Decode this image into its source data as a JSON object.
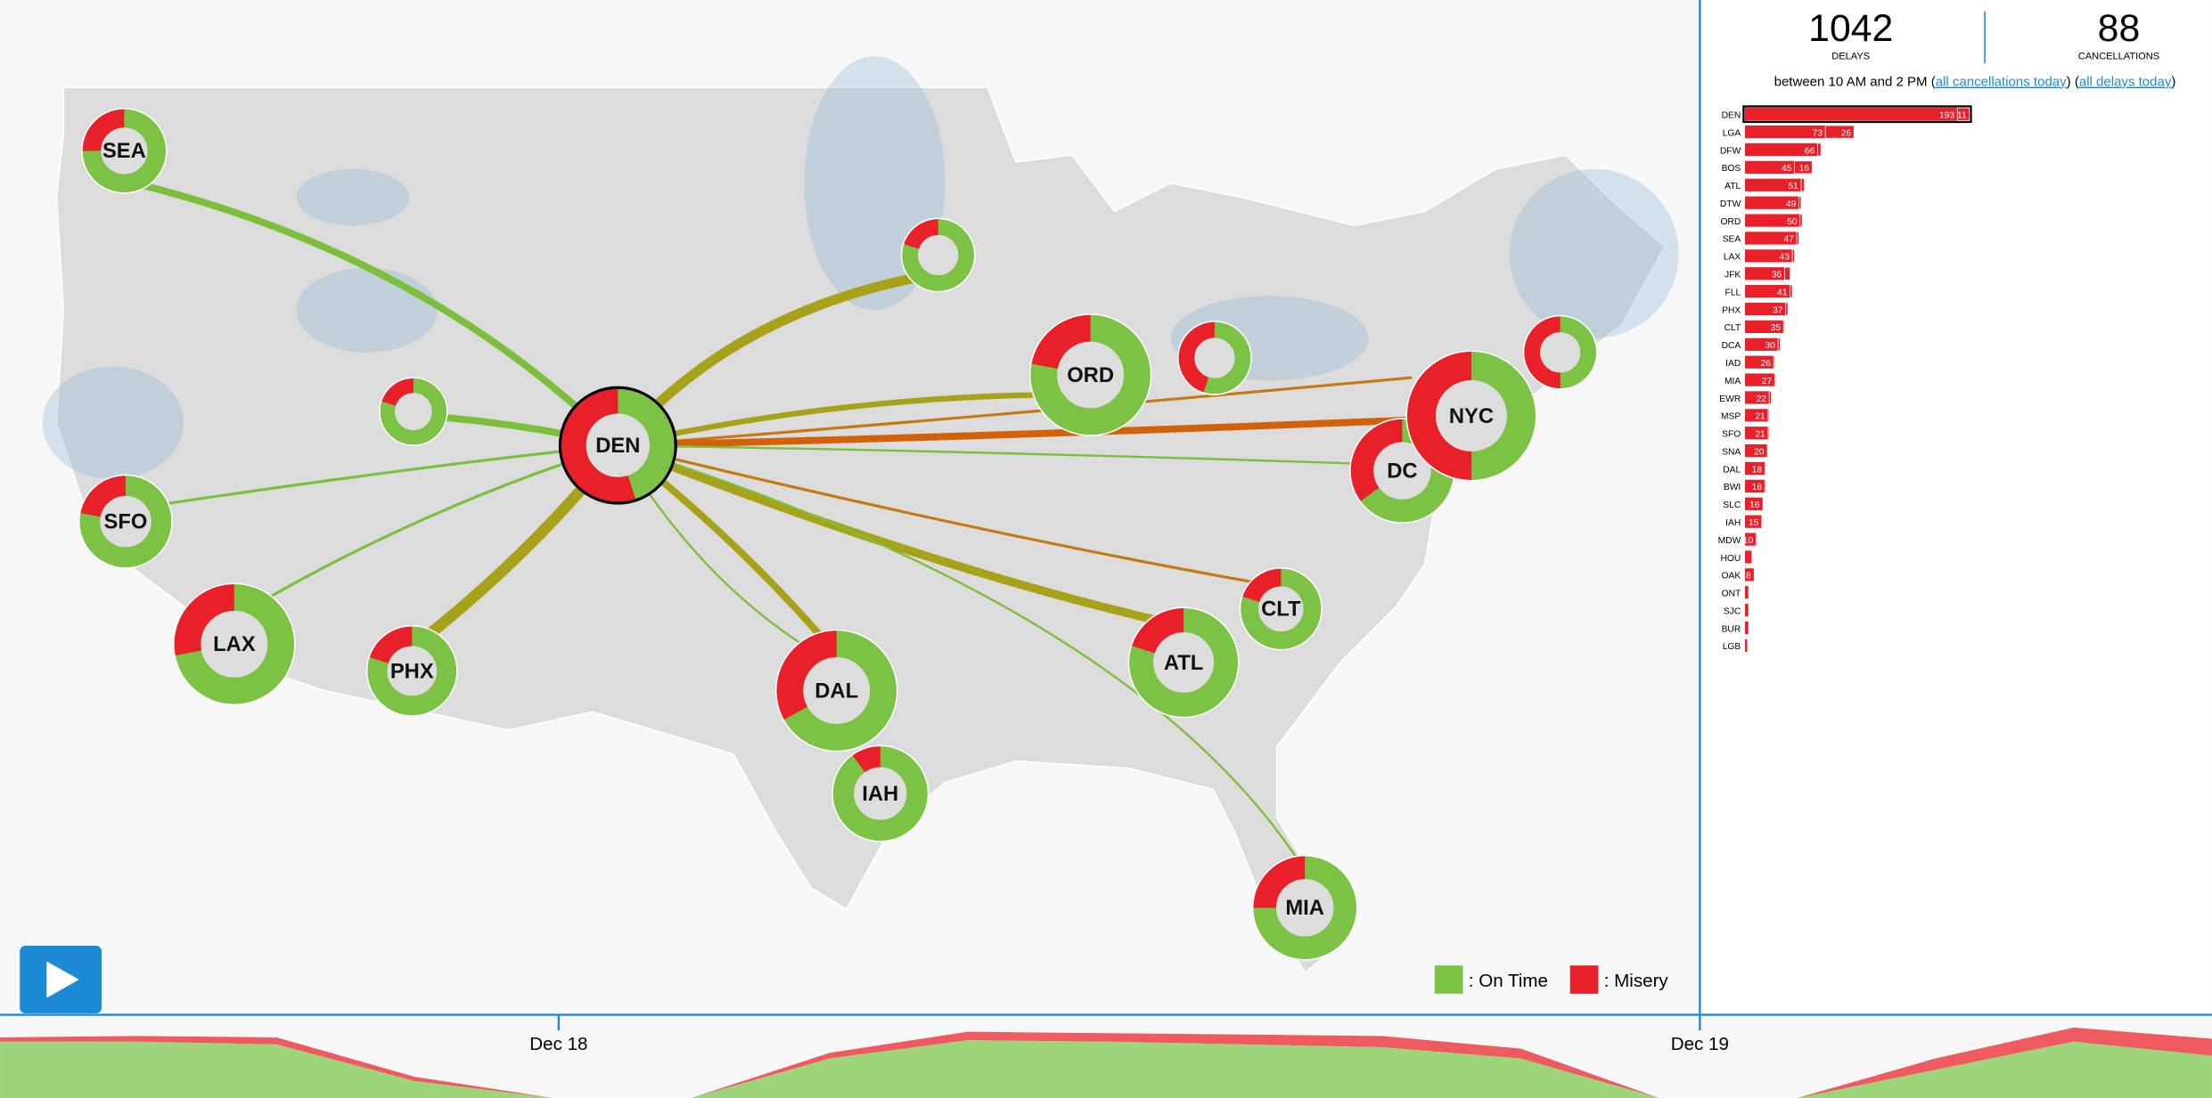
{
  "stats": {
    "delays": "1042",
    "delays_label": "DELAYS",
    "cancellations": "88",
    "cancellations_label": "CANCELLATIONS",
    "window": "between 10 AM and 2 PM (",
    "link_cancellations": "all cancellations today",
    "between_links": ") (",
    "link_delays": "all delays today",
    "close": ")"
  },
  "delays_chart": {
    "airports": [
      "DEN",
      "LGA",
      "DFW",
      "BOS",
      "ATL",
      "DTW",
      "ORD",
      "SEA",
      "LAX",
      "JFK",
      "FLL",
      "PHX",
      "CLT",
      "DCA",
      "IAD",
      "MIA",
      "EWR",
      "MSP",
      "SFO",
      "SNA",
      "DAL",
      "BWI",
      "SLC",
      "IAH",
      "MDW",
      "HOU",
      "OAK",
      "ONT",
      "SJC",
      "BUR",
      "LGB"
    ],
    "delays": [
      193,
      73,
      66,
      45,
      51,
      49,
      50,
      47,
      43,
      36,
      41,
      37,
      35,
      30,
      26,
      27,
      22,
      21,
      21,
      20,
      18,
      18,
      16,
      15,
      10,
      6,
      8,
      3,
      3,
      3,
      2
    ],
    "cancellations": [
      11,
      26,
      3,
      16,
      3,
      2,
      2,
      2,
      2,
      5,
      2,
      2,
      1,
      2,
      1,
      1,
      2,
      1,
      1,
      0,
      0,
      1,
      0,
      0,
      1,
      0,
      0,
      0,
      0,
      0,
      0
    ]
  },
  "hubs": [
    {
      "label": "SEA",
      "misery": 25
    },
    {
      "label": null,
      "misery": 20
    },
    {
      "label": null,
      "misery": 20
    },
    {
      "label": "SFO",
      "misery": 22
    },
    {
      "label": "LAX",
      "misery": 28
    },
    {
      "label": "PHX",
      "misery": 20
    },
    {
      "label": "DAL",
      "misery": 33
    },
    {
      "label": "IAH",
      "misery": 10
    },
    {
      "label": "ORD",
      "misery": 22
    },
    {
      "label": null,
      "misery": 45
    },
    {
      "label": "DC",
      "misery": 35
    },
    {
      "label": "NYC",
      "misery": 50
    },
    {
      "label": null,
      "misery": 50
    },
    {
      "label": "CLT",
      "misery": 20
    },
    {
      "label": "ATL",
      "misery": 20
    },
    {
      "label": "MIA",
      "misery": 25
    },
    {
      "label": "DEN",
      "misery": 55
    }
  ],
  "legend": {
    "on_time": ": On Time",
    "misery": ": Misery"
  },
  "timeline": {
    "labels": [
      "Dec 18",
      "Dec 19"
    ],
    "on_time": [
      40,
      40,
      38,
      12,
      0,
      0,
      28,
      41,
      40,
      38,
      36,
      28,
      0,
      0,
      20,
      40,
      30
    ],
    "misery": [
      3,
      4,
      5,
      3,
      0,
      0,
      4,
      6,
      6,
      7,
      8,
      7,
      0,
      0,
      8,
      10,
      12
    ]
  }
}
